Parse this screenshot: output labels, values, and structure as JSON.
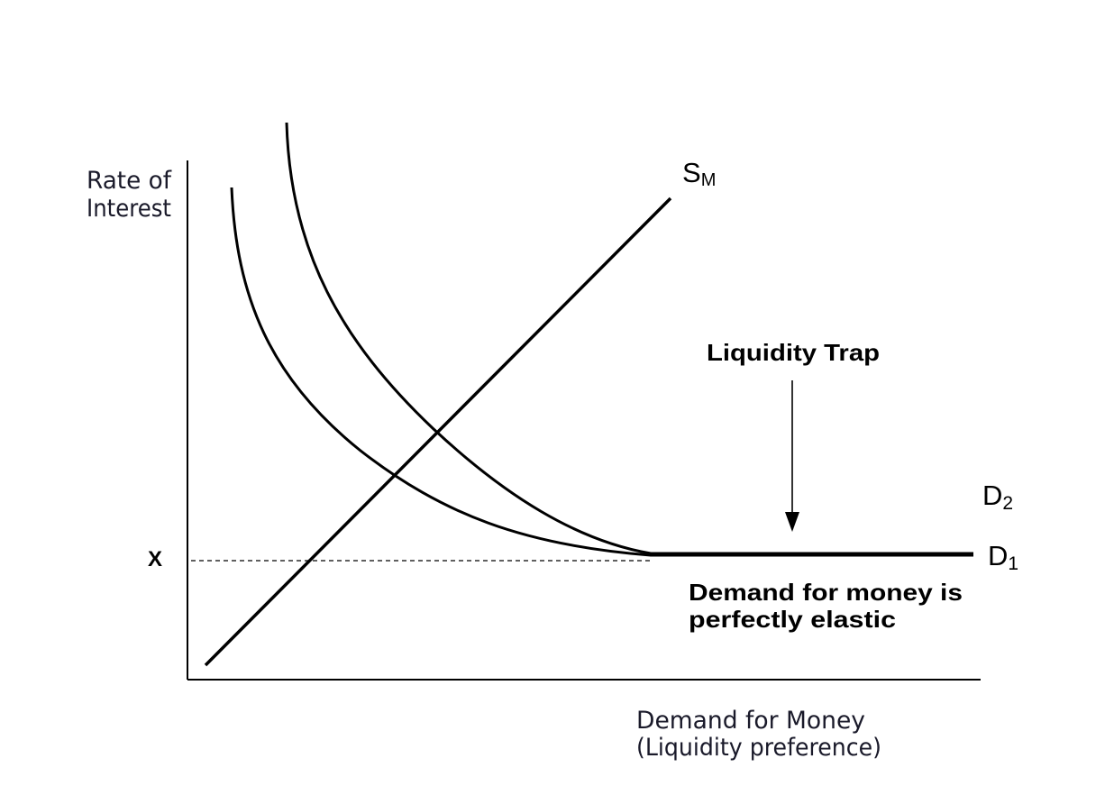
{
  "diagram": {
    "y_axis_label_line1": "Rate of",
    "y_axis_label_line2": "Interest",
    "x_axis_label_line1": "Demand for Money",
    "x_axis_label_line2": "(Liquidity preference)",
    "x_level_label": "X",
    "supply_curve": {
      "main": "S",
      "sub": "M"
    },
    "demand_curve_1": {
      "main": "D",
      "sub": "1"
    },
    "demand_curve_2": {
      "main": "D",
      "sub": "2"
    },
    "trap_label": "Liquidity Trap",
    "elastic_note_line1": "Demand for money is",
    "elastic_note_line2": "perfectly elastic"
  },
  "colors": {
    "line": "#000000",
    "axis_text": "#1a1a2a"
  }
}
